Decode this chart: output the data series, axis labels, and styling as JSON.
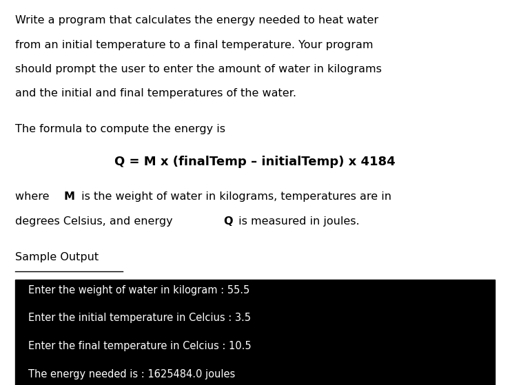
{
  "bg_color": "#ffffff",
  "text_color": "#000000",
  "terminal_bg": "#000000",
  "terminal_text": "#ffffff",
  "para1_lines": [
    "Write a program that calculates the energy needed to heat water",
    "from an initial temperature to a final temperature. Your program",
    "should prompt the user to enter the amount of water in kilograms",
    "and the initial and final temperatures of the water."
  ],
  "para2": "The formula to compute the energy is",
  "formula": "Q = M x (finalTemp – initialTemp) x 4184",
  "para3_line1_parts": [
    {
      "text": "where ",
      "bold": false
    },
    {
      "text": "M",
      "bold": true
    },
    {
      "text": " is the weight of water in kilograms, temperatures are in",
      "bold": false
    }
  ],
  "para3_line2_parts": [
    {
      "text": "degrees Celsius, and energy ",
      "bold": false
    },
    {
      "text": "Q",
      "bold": true
    },
    {
      "text": " is measured in joules.",
      "bold": false
    }
  ],
  "sample_output_label": "Sample Output",
  "terminal_lines": [
    "Enter the weight of water in kilogram : 55.5",
    "Enter the initial temperature in Celcius : 3.5",
    "Enter the final temperature in Celcius : 10.5",
    "The energy needed is : 1625484.0 joules"
  ],
  "figsize": [
    7.4,
    5.59
  ],
  "dpi": 100
}
